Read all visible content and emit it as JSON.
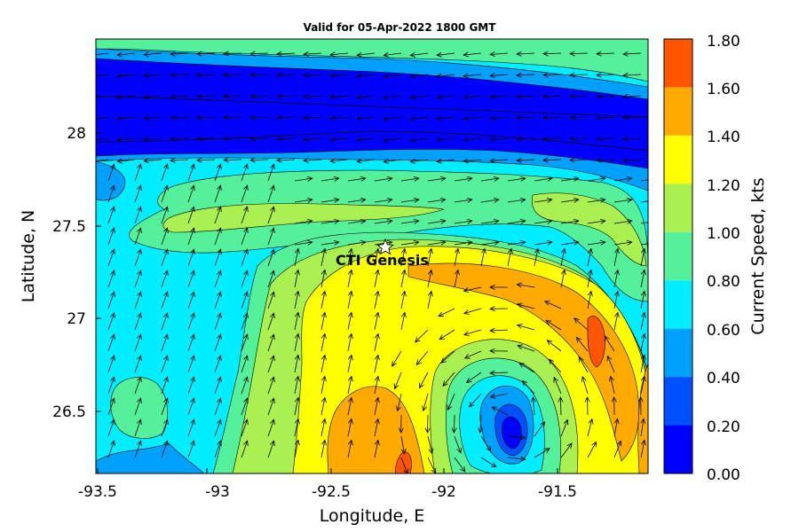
{
  "title": "Valid for 05-Apr-2022 1800 GMT",
  "chart_data": {
    "type": "heatmap",
    "subtype": "filled contour map with current vectors",
    "xlabel": "Longitude, E",
    "ylabel": "Latitude, N",
    "xlim": [
      -93.57,
      -91.07
    ],
    "ylim": [
      26.15,
      28.5
    ],
    "xticks": [
      "-93.5",
      "-93",
      "-92.5",
      "-92",
      "-91.5"
    ],
    "xtick_values": [
      -93.5,
      -93.0,
      -92.5,
      -92.0,
      -91.5
    ],
    "yticks": [
      "28",
      "27.5",
      "27",
      "26.5"
    ],
    "ytick_values": [
      28.0,
      27.5,
      27.0,
      26.5
    ],
    "colorbar": {
      "label": "Current Speed, kts",
      "ticks": [
        "1.80",
        "1.60",
        "1.40",
        "1.20",
        "1.00",
        "0.80",
        "0.60",
        "0.40",
        "0.20",
        "0.00"
      ],
      "tick_values": [
        1.8,
        1.6,
        1.4,
        1.2,
        1.0,
        0.8,
        0.6,
        0.4,
        0.2,
        0.0
      ],
      "colors": [
        "#0000ff",
        "#0050ff",
        "#00a0ff",
        "#00eeff",
        "#55f09a",
        "#aaf050",
        "#ffff00",
        "#ffaa00",
        "#ff5500"
      ]
    },
    "marker": {
      "label": "CTI Genesis",
      "lon": -92.25,
      "lat": 27.38,
      "symbol": "star"
    },
    "vector_color": "#000000",
    "contour_line_color": "#000000"
  }
}
